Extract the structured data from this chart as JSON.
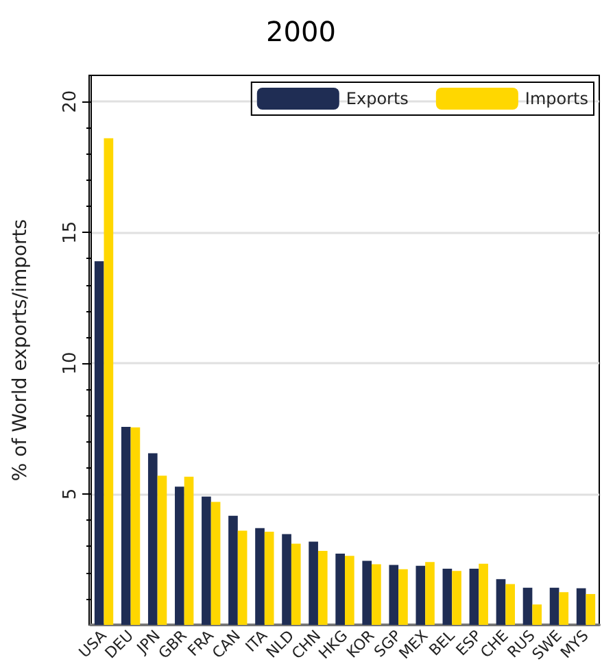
{
  "chart_data": {
    "type": "bar",
    "title": "2000",
    "ylabel": "% of World exports/imports",
    "categories": [
      "USA",
      "DEU",
      "JPN",
      "GBR",
      "FRA",
      "CAN",
      "ITA",
      "NLD",
      "CHN",
      "HKG",
      "KOR",
      "SGP",
      "MEX",
      "BEL",
      "ESP",
      "CHE",
      "RUS",
      "SWE",
      "MYS"
    ],
    "series": [
      {
        "name": "Exports",
        "color": "#1f2d54",
        "values": [
          13.9,
          7.57,
          6.56,
          5.28,
          4.9,
          4.17,
          3.7,
          3.47,
          3.18,
          2.72,
          2.45,
          2.29,
          2.26,
          2.15,
          2.15,
          1.75,
          1.42,
          1.42,
          1.4
        ]
      },
      {
        "name": "Imports",
        "color": "#ffd700",
        "values": [
          18.6,
          7.55,
          5.7,
          5.66,
          4.7,
          3.6,
          3.56,
          3.1,
          2.83,
          2.64,
          2.32,
          2.13,
          2.4,
          2.06,
          2.34,
          1.56,
          0.78,
          1.25,
          1.18
        ]
      }
    ],
    "ylim": [
      0,
      21
    ],
    "yticks": [
      5,
      10,
      15,
      20
    ],
    "grid": "y",
    "legend": "top right"
  }
}
